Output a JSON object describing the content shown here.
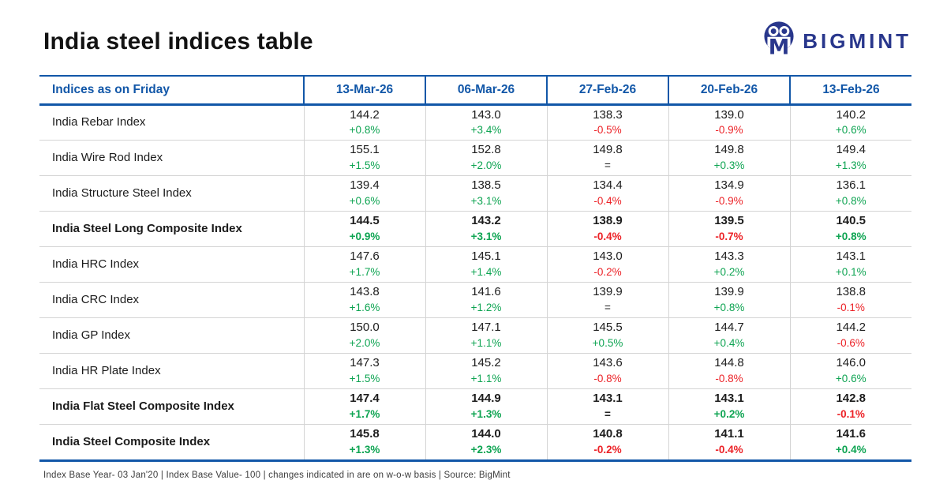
{
  "page": {
    "title": "India steel indices table"
  },
  "brand": {
    "name": "BIGMINT"
  },
  "colors": {
    "header_blue": "#1257a8",
    "brand_navy": "#29378c",
    "positive_green": "#0ea452",
    "negative_red": "#ec2227"
  },
  "footer": {
    "note": "Index Base Year- 03 Jan'20 | Index Base Value- 100 | changes indicated in are on w-o-w basis | Source: BigMint"
  },
  "chart_data": {
    "type": "table",
    "title": "India steel indices table",
    "columns": [
      "Indices as on Friday",
      "13-Mar-26",
      "06-Mar-26",
      "27-Feb-26",
      "20-Feb-26",
      "13-Feb-26"
    ],
    "change_basis": "w-o-w",
    "rows": [
      {
        "label": "India Rebar Index",
        "bold": false,
        "values": [
          144.2,
          143.0,
          138.3,
          139.0,
          140.2
        ],
        "changes": [
          "+0.8%",
          "+3.4%",
          "-0.5%",
          "-0.9%",
          "+0.6%"
        ]
      },
      {
        "label": "India Wire Rod Index",
        "bold": false,
        "values": [
          155.1,
          152.8,
          149.8,
          149.8,
          149.4
        ],
        "changes": [
          "+1.5%",
          "+2.0%",
          "=",
          "+0.3%",
          "+1.3%"
        ]
      },
      {
        "label": "India Structure Steel Index",
        "bold": false,
        "values": [
          139.4,
          138.5,
          134.4,
          134.9,
          136.1
        ],
        "changes": [
          "+0.6%",
          "+3.1%",
          "-0.4%",
          "-0.9%",
          "+0.8%"
        ]
      },
      {
        "label": "India Steel Long Composite Index",
        "bold": true,
        "values": [
          144.5,
          143.2,
          138.9,
          139.5,
          140.5
        ],
        "changes": [
          "+0.9%",
          "+3.1%",
          "-0.4%",
          "-0.7%",
          "+0.8%"
        ]
      },
      {
        "label": "India HRC Index",
        "bold": false,
        "values": [
          147.6,
          145.1,
          143.0,
          143.3,
          143.1
        ],
        "changes": [
          "+1.7%",
          "+1.4%",
          "-0.2%",
          "+0.2%",
          "+0.1%"
        ]
      },
      {
        "label": "India CRC Index",
        "bold": false,
        "values": [
          143.8,
          141.6,
          139.9,
          139.9,
          138.8
        ],
        "changes": [
          "+1.6%",
          "+1.2%",
          "=",
          "+0.8%",
          "-0.1%"
        ]
      },
      {
        "label": "India GP Index",
        "bold": false,
        "values": [
          150.0,
          147.1,
          145.5,
          144.7,
          144.2
        ],
        "changes": [
          "+2.0%",
          "+1.1%",
          "+0.5%",
          "+0.4%",
          "-0.6%"
        ]
      },
      {
        "label": "India HR Plate Index",
        "bold": false,
        "values": [
          147.3,
          145.2,
          143.6,
          144.8,
          146.0
        ],
        "changes": [
          "+1.5%",
          "+1.1%",
          "-0.8%",
          "-0.8%",
          "+0.6%"
        ]
      },
      {
        "label": "India Flat Steel Composite Index",
        "bold": true,
        "values": [
          147.4,
          144.9,
          143.1,
          143.1,
          142.8
        ],
        "changes": [
          "+1.7%",
          "+1.3%",
          "=",
          "+0.2%",
          "-0.1%"
        ]
      },
      {
        "label": "India Steel Composite Index",
        "bold": true,
        "values": [
          145.8,
          144.0,
          140.8,
          141.1,
          141.6
        ],
        "changes": [
          "+1.3%",
          "+2.3%",
          "-0.2%",
          "-0.4%",
          "+0.4%"
        ]
      }
    ]
  }
}
